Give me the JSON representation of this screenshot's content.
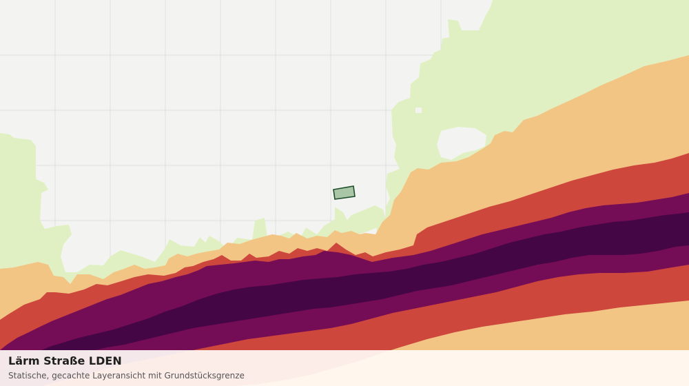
{
  "caption": {
    "title": "Lärm Straße LDEN",
    "subtitle": "Statische, gecachte Layeransicht mit Grundstücksgrenze"
  },
  "map": {
    "grid": true,
    "background_color": "#f3f4f2",
    "grid_color": "#dedfdd",
    "noise_bands": [
      {
        "level": 1,
        "color": "#e1f0c2"
      },
      {
        "level": 2,
        "color": "#f3c585"
      },
      {
        "level": 3,
        "color": "#cd473d"
      },
      {
        "level": 4,
        "color": "#740c56"
      },
      {
        "level": 5,
        "color": "#440645"
      }
    ],
    "parcel": {
      "fill": "#a9c6a6",
      "stroke": "#1d4d2a"
    }
  }
}
